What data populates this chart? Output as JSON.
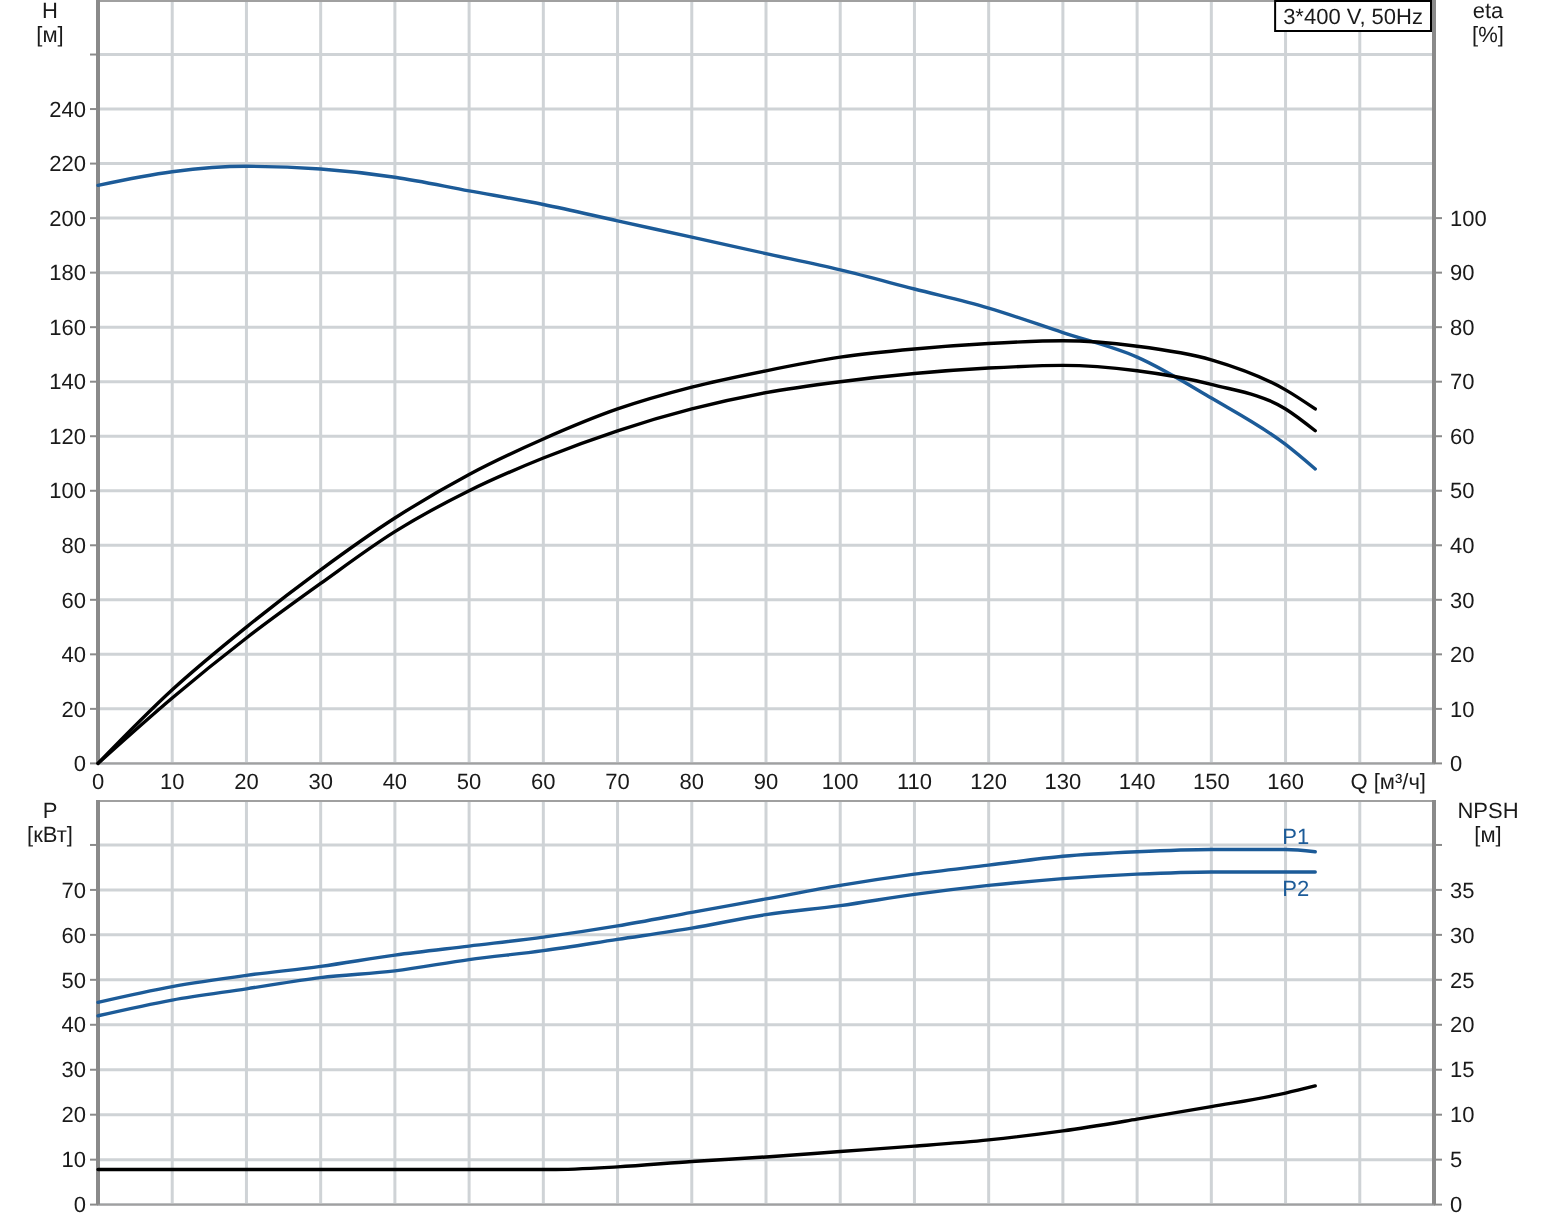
{
  "chart_data": [
    {
      "type": "line",
      "title": "3*400 V, 50Hz",
      "xlabel": "Q [м³/ч]",
      "ylabel": "H [м]",
      "y2label": "eta [%]",
      "x": [
        0,
        10,
        20,
        30,
        40,
        50,
        60,
        70,
        80,
        90,
        100,
        110,
        120,
        130,
        140,
        150,
        160,
        164
      ],
      "series": [
        {
          "color": "#1c5b98",
          "values": [
            212,
            217,
            219,
            218,
            215,
            210,
            205,
            199,
            193,
            187,
            181,
            174,
            167,
            158,
            149,
            134,
            117,
            108
          ]
        },
        {
          "color": "#000000",
          "axis": "y2",
          "values": [
            0,
            13.5,
            25,
            35.5,
            45,
            53,
            59.5,
            65,
            69,
            72,
            74.5,
            76,
            77,
            77.5,
            76.5,
            74,
            68.5,
            65
          ]
        },
        {
          "color": "#000000",
          "axis": "y2",
          "values": [
            0,
            12,
            23,
            33,
            42.5,
            50,
            56,
            61,
            65,
            68,
            70,
            71.5,
            72.5,
            73,
            72,
            69.5,
            65,
            61
          ]
        }
      ],
      "xlim": [
        0,
        180
      ],
      "xticks": [
        0,
        10,
        20,
        30,
        40,
        50,
        60,
        70,
        80,
        90,
        100,
        110,
        120,
        130,
        140,
        150,
        160,
        {
          "value": 170,
          "label": null
        }
      ],
      "ylim": [
        0,
        280
      ],
      "yticks": [
        0,
        20,
        40,
        60,
        80,
        100,
        120,
        140,
        160,
        180,
        200,
        220,
        240,
        {
          "value": 260,
          "label": null
        }
      ],
      "y2lim": [
        0,
        140
      ],
      "y2ticks": [
        0,
        10,
        20,
        30,
        40,
        50,
        60,
        70,
        80,
        90,
        100
      ],
      "grid": true
    },
    {
      "type": "line",
      "ylabel": "P [кВт]",
      "y2label": "NPSH [м]",
      "x": [
        0,
        10,
        20,
        30,
        40,
        50,
        60,
        70,
        80,
        90,
        100,
        110,
        120,
        130,
        140,
        150,
        160,
        164
      ],
      "series": [
        {
          "name": "P1",
          "color": "#1c5b98",
          "values": [
            45,
            48.5,
            51,
            53,
            55.5,
            57.5,
            59.5,
            62,
            65,
            68,
            71,
            73.5,
            75.5,
            77.5,
            78.5,
            79,
            79,
            78.5
          ]
        },
        {
          "name": "P2",
          "color": "#1c5b98",
          "values": [
            42,
            45.5,
            48,
            50.5,
            52,
            54.5,
            56.5,
            59,
            61.5,
            64.5,
            66.5,
            69,
            71,
            72.5,
            73.5,
            74,
            74,
            74
          ]
        },
        {
          "color": "#000000",
          "axis": "y2",
          "x": [
            0,
            61,
            70,
            80,
            90,
            100,
            110,
            120,
            130,
            140,
            150,
            160,
            164
          ],
          "values": [
            3.9,
            3.9,
            4.2,
            4.8,
            5.3,
            5.9,
            6.5,
            7.2,
            8.2,
            9.5,
            10.9,
            12.4,
            13.2
          ]
        }
      ],
      "xlim": [
        0,
        180
      ],
      "xticks": [
        0,
        10,
        20,
        30,
        40,
        50,
        60,
        70,
        80,
        90,
        100,
        110,
        120,
        130,
        140,
        150,
        160,
        {
          "value": 170,
          "label": null
        }
      ],
      "ylim": [
        0,
        90
      ],
      "yticks": [
        0,
        10,
        20,
        30,
        40,
        50,
        60,
        70,
        {
          "value": 80,
          "label": null
        }
      ],
      "y2lim": [
        0,
        45
      ],
      "y2ticks": [
        0,
        5,
        10,
        15,
        20,
        25,
        30,
        35,
        {
          "value": 40,
          "label": null
        }
      ],
      "grid": true,
      "tick_labels": "y"
    }
  ]
}
